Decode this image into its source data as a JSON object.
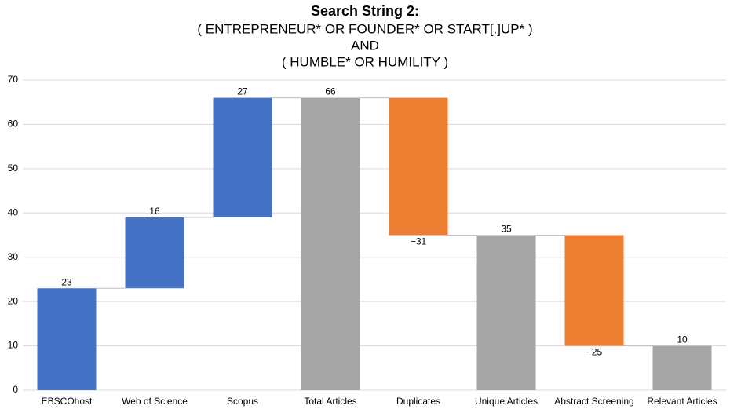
{
  "chart_data": {
    "type": "waterfall",
    "title": "Search String 2:",
    "subtitle": [
      "( ENTREPRENEUR* OR FOUNDER* OR START[.]UP* )",
      "AND",
      "( HUMBLE* OR HUMILITY )"
    ],
    "categories": [
      "EBSCOhost",
      "Web of Science",
      "Scopus",
      "Total Articles",
      "Duplicates",
      "Unique Articles",
      "Abstract Screening",
      "Relevant Articles"
    ],
    "values": [
      23,
      16,
      27,
      66,
      -31,
      35,
      -25,
      10
    ],
    "value_labels": [
      "23",
      "16",
      "27",
      "66",
      "−31",
      "35",
      "−25",
      "10"
    ],
    "total_bars": [
      false,
      false,
      false,
      true,
      false,
      true,
      false,
      true
    ],
    "colors": {
      "increase": "#4472c4",
      "decrease": "#ed7d31",
      "total": "#a5a5a5"
    },
    "ylim": [
      0,
      70
    ],
    "yticks": [
      0,
      10,
      20,
      30,
      40,
      50,
      60,
      70
    ],
    "grid": true
  }
}
